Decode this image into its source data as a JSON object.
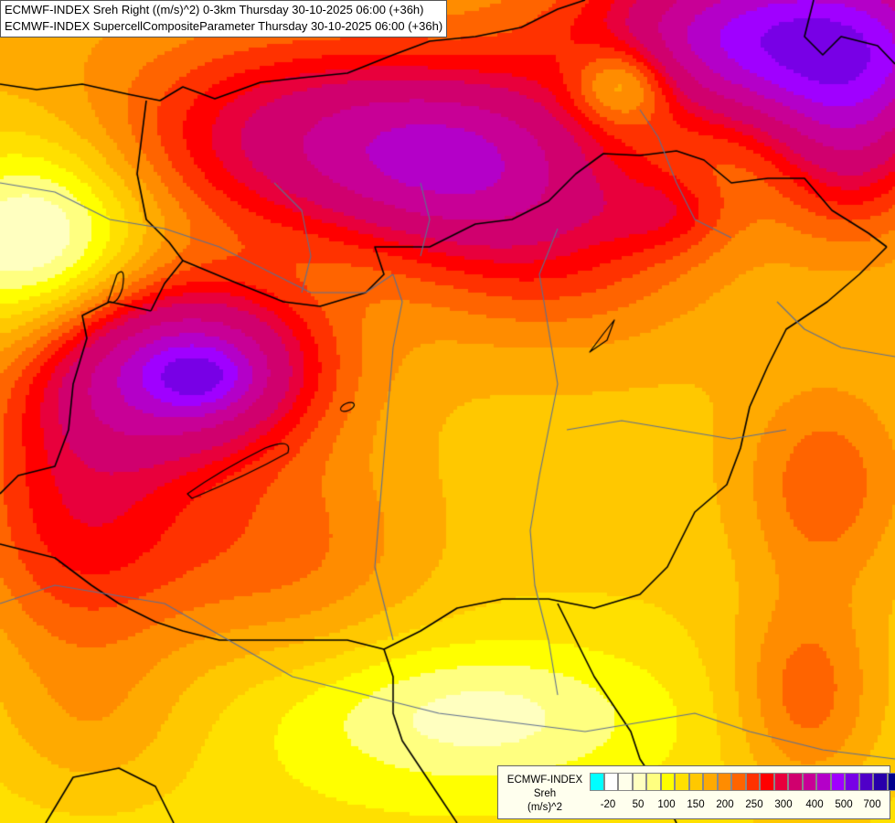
{
  "header": {
    "title_line_1": "ECMWF-INDEX Sreh Right ((m/s)^2) 0-3km Thursday 30-10-2025 06:00 (+36h)",
    "title_line_2": "ECMWF-INDEX SupercellCompositeParameter Thursday 30-10-2025 06:00 (+36h)"
  },
  "legend": {
    "title_line_1": "ECMWF-INDEX",
    "title_line_2": "Sreh",
    "title_line_3": "(m/s)^2",
    "colors": [
      "#00ffff",
      "#ffffff",
      "#ffffea",
      "#ffffc0",
      "#ffff80",
      "#ffff00",
      "#ffe000",
      "#ffc800",
      "#ffaa00",
      "#ff8c00",
      "#ff6400",
      "#ff3200",
      "#ff0000",
      "#e8003c",
      "#d0006e",
      "#c80096",
      "#b400c8",
      "#a000ff",
      "#7800e6",
      "#5000c8",
      "#2800aa",
      "#00008c"
    ],
    "ticks": [
      "-20",
      "50",
      "100",
      "150",
      "200",
      "250",
      "300",
      "400",
      "500",
      "700"
    ]
  }
}
